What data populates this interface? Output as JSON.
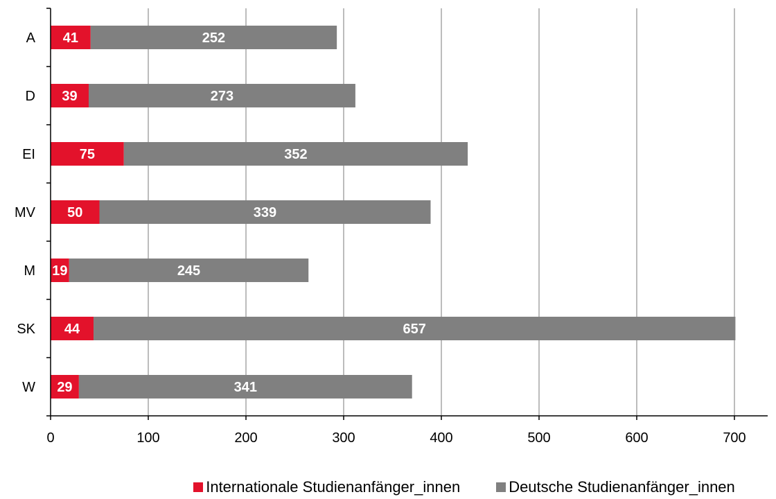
{
  "chart_data": {
    "type": "bar",
    "orientation": "horizontal",
    "stacked": true,
    "categories": [
      "A",
      "D",
      "EI",
      "MV",
      "M",
      "SK",
      "W"
    ],
    "series": [
      {
        "name": "Internationale Studienanfänger_innen",
        "color": "#e3122b",
        "values": [
          41,
          39,
          75,
          50,
          19,
          44,
          29
        ]
      },
      {
        "name": "Deutsche Studienanfänger_innen",
        "color": "#808080",
        "values": [
          252,
          273,
          352,
          339,
          245,
          657,
          341
        ]
      }
    ],
    "xlim": [
      0,
      700
    ],
    "xticks": [
      0,
      100,
      200,
      300,
      400,
      500,
      600,
      700
    ],
    "title": "",
    "xlabel": "",
    "ylabel": "",
    "grid": "vertical",
    "legend_position": "bottom"
  },
  "colors": {
    "grid": "#a6a6a6",
    "axis": "#000000",
    "label_text": "#ffffff"
  }
}
